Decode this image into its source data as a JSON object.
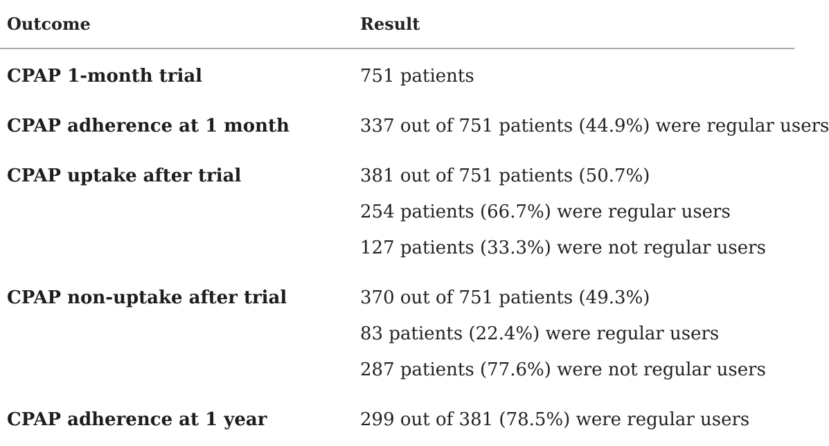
{
  "header": {
    "outcome": "Outcome",
    "result": "Result"
  },
  "rows": [
    {
      "label": "CPAP 1-month trial",
      "results": [
        "751 patients"
      ]
    },
    {
      "label": "CPAP adherence at 1 month",
      "results": [
        "337 out of 751 patients (44.9%) were regular users"
      ]
    },
    {
      "label": "CPAP uptake after trial",
      "results": [
        "381 out of 751 patients (50.7%)",
        "254 patients (66.7%) were regular users",
        "127 patients (33.3%) were not regular users"
      ]
    },
    {
      "label": "CPAP non-uptake after trial",
      "results": [
        "370 out of 751 patients (49.3%)",
        "83 patients (22.4%) were regular users",
        "287 patients (77.6%) were not regular users"
      ]
    },
    {
      "label": "CPAP adherence at 1 year",
      "results": [
        "299 out of 381 (78.5%) were regular users"
      ]
    }
  ]
}
